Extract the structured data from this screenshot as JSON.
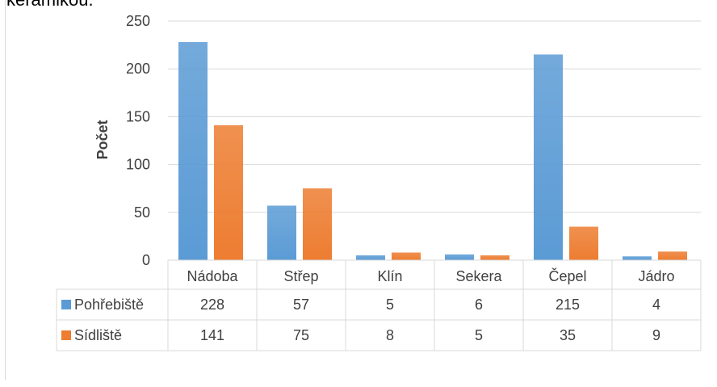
{
  "caption_fragment": "keramikou.",
  "colors": {
    "series_1": "#5b9bd5",
    "series_2": "#ed7d31",
    "grid": "#d9d9d9",
    "text": "#404040"
  },
  "chart_data": {
    "type": "bar",
    "title": "",
    "xlabel": "",
    "ylabel": "Počet",
    "ylim": [
      0,
      250
    ],
    "yticks": [
      0,
      50,
      100,
      150,
      200,
      250
    ],
    "grid": true,
    "legend": "data-table",
    "categories": [
      "Nádoba",
      "Střep",
      "Klín",
      "Sekera",
      "Čepel",
      "Jádro"
    ],
    "series": [
      {
        "name": "Pohřebiště",
        "values": [
          228,
          57,
          5,
          6,
          215,
          4
        ]
      },
      {
        "name": "Sídliště",
        "values": [
          141,
          75,
          8,
          5,
          35,
          9
        ]
      }
    ]
  }
}
